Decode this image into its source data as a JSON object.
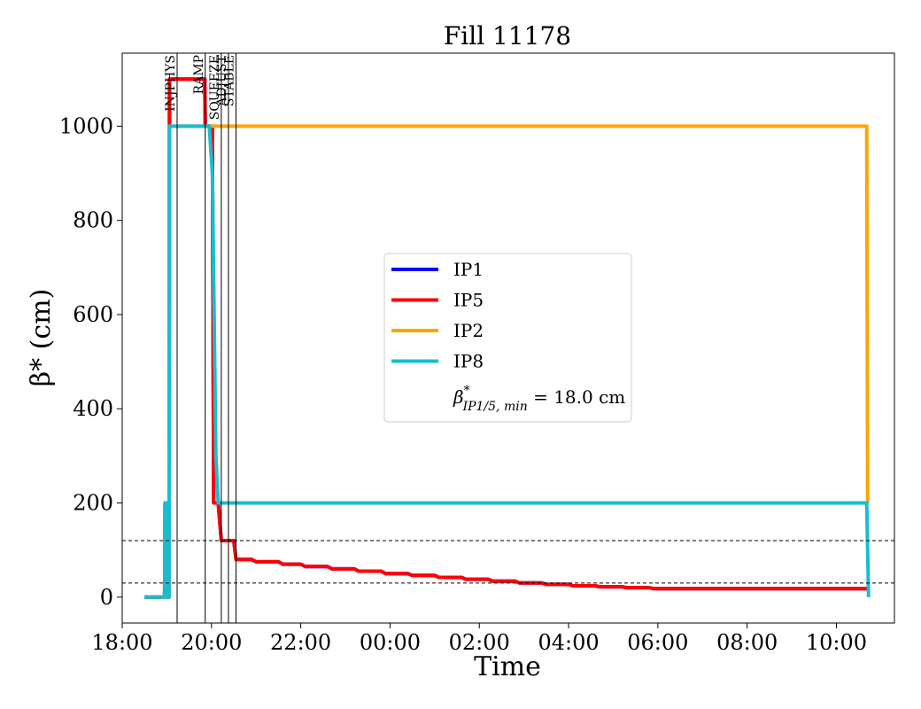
{
  "chart_data": {
    "type": "line",
    "title": "Fill 11178",
    "xlabel": "Time",
    "ylabel": "β* (cm)",
    "x_unit": "hour_of_day",
    "xlim": [
      18.0,
      35.3
    ],
    "ylim": [
      -55,
      1155
    ],
    "x_ticks": [
      {
        "value": 18,
        "label": "18:00"
      },
      {
        "value": 20,
        "label": "20:00"
      },
      {
        "value": 22,
        "label": "22:00"
      },
      {
        "value": 24,
        "label": "00:00"
      },
      {
        "value": 26,
        "label": "02:00"
      },
      {
        "value": 28,
        "label": "04:00"
      },
      {
        "value": 30,
        "label": "06:00"
      },
      {
        "value": 32,
        "label": "08:00"
      },
      {
        "value": 34,
        "label": "10:00"
      }
    ],
    "y_ticks": [
      0,
      200,
      400,
      600,
      800,
      1000
    ],
    "hlines": [
      120,
      30
    ],
    "phases": [
      {
        "label": "INJPHYS",
        "x": 19.23
      },
      {
        "label": "RAMP",
        "x": 19.86
      },
      {
        "label": "SQUEEZE",
        "x": 20.22
      },
      {
        "label": "ADJUST",
        "x": 20.38
      },
      {
        "label": "STABLE",
        "x": 20.55
      }
    ],
    "legend": {
      "placement": "center",
      "annotation": "β*IP1/5, min = 18.0 cm",
      "annotation_parts": {
        "symbol": "β",
        "sup": "*",
        "sub": "IP1/5, min",
        "rest": " = 18.0 cm"
      }
    },
    "series": [
      {
        "name": "IP1",
        "color": "#0000ff",
        "x": [
          18.5,
          18.95,
          18.96,
          19.0,
          19.01,
          19.05,
          19.06,
          19.85,
          19.86,
          20.02,
          20.05,
          20.15,
          20.22,
          20.5,
          20.55,
          20.9,
          21.0,
          21.5,
          21.6,
          22.0,
          22.1,
          22.6,
          22.7,
          23.2,
          23.3,
          23.8,
          23.9,
          24.4,
          24.5,
          25.0,
          25.1,
          25.6,
          25.7,
          26.2,
          26.3,
          26.8,
          26.9,
          27.4,
          27.5,
          28.0,
          28.1,
          28.6,
          28.7,
          29.2,
          29.3,
          29.8,
          29.9,
          34.7
        ],
        "y": [
          0,
          0,
          200,
          200,
          0,
          0,
          1100,
          1100,
          1000,
          1000,
          200,
          200,
          120,
          120,
          80,
          80,
          75,
          75,
          70,
          70,
          65,
          65,
          60,
          60,
          55,
          55,
          50,
          50,
          46,
          46,
          42,
          42,
          38,
          38,
          34,
          34,
          30,
          30,
          27,
          27,
          24,
          24,
          22,
          22,
          20,
          20,
          18,
          18
        ]
      },
      {
        "name": "IP5",
        "color": "#ff0000",
        "x": [
          18.5,
          18.95,
          18.96,
          19.0,
          19.01,
          19.05,
          19.06,
          19.85,
          19.86,
          20.02,
          20.05,
          20.15,
          20.22,
          20.5,
          20.55,
          20.9,
          21.0,
          21.5,
          21.6,
          22.0,
          22.1,
          22.6,
          22.7,
          23.2,
          23.3,
          23.8,
          23.9,
          24.4,
          24.5,
          25.0,
          25.1,
          25.6,
          25.7,
          26.2,
          26.3,
          26.8,
          26.9,
          27.4,
          27.5,
          28.0,
          28.1,
          28.6,
          28.7,
          29.2,
          29.3,
          29.8,
          29.9,
          34.7
        ],
        "y": [
          0,
          0,
          200,
          200,
          0,
          0,
          1100,
          1100,
          1000,
          1000,
          200,
          200,
          120,
          120,
          80,
          80,
          75,
          75,
          70,
          70,
          65,
          65,
          60,
          60,
          55,
          55,
          50,
          50,
          46,
          46,
          42,
          42,
          38,
          38,
          34,
          34,
          30,
          30,
          27,
          27,
          24,
          24,
          22,
          22,
          20,
          20,
          18,
          18
        ]
      },
      {
        "name": "IP2",
        "color": "#ffa500",
        "x": [
          18.5,
          18.95,
          18.96,
          19.0,
          19.01,
          19.05,
          19.06,
          34.68,
          34.7
        ],
        "y": [
          0,
          0,
          200,
          200,
          0,
          0,
          1000,
          1000,
          200
        ]
      },
      {
        "name": "IP8",
        "color": "#17becf",
        "x": [
          18.5,
          18.95,
          18.96,
          19.0,
          19.01,
          19.05,
          19.06,
          19.95,
          20.02,
          20.1,
          20.15,
          34.68,
          34.72
        ],
        "y": [
          0,
          0,
          200,
          200,
          0,
          0,
          1000,
          1000,
          900,
          300,
          200,
          200,
          0
        ]
      }
    ]
  }
}
